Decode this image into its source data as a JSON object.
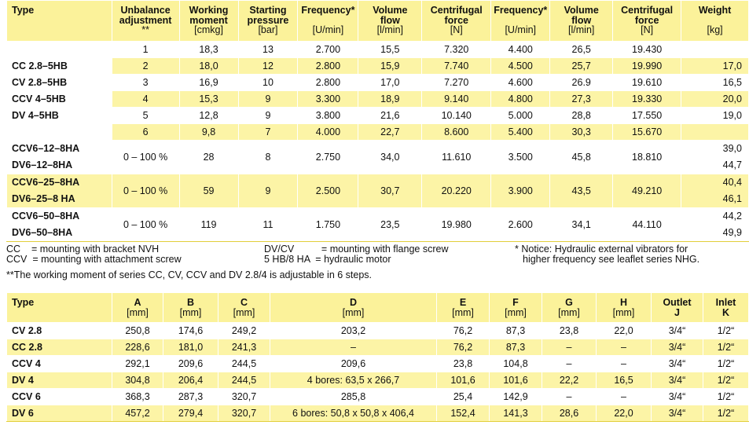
{
  "table1": {
    "headers": {
      "type": "Type",
      "unbalance": [
        "Unbalance",
        "adjustment",
        "**"
      ],
      "working": [
        "Working",
        "moment",
        "[cmkg]"
      ],
      "starting": [
        "Starting",
        "pressure",
        "[bar]"
      ],
      "freq1": [
        "Frequency*",
        "",
        "[U/min]"
      ],
      "vol1": [
        "Volume",
        "flow",
        "[l/min]"
      ],
      "cent1": [
        "Centrifugal",
        "force",
        "[N]"
      ],
      "freq2": [
        "Frequency*",
        "",
        "[U/min]"
      ],
      "vol2": [
        "Volume",
        "flow",
        "[l/min]"
      ],
      "cent2": [
        "Centrifugal",
        "force",
        "[N]"
      ],
      "weight": [
        "Weight",
        "",
        "[kg]"
      ]
    },
    "group1_types": [
      "CC 2.8–5HB",
      "CV 2.8–5HB",
      "CCV 4–5HB",
      "DV 4–5HB"
    ],
    "group1_rows": [
      [
        "1",
        "18,3",
        "13",
        "2.700",
        "15,5",
        "7.320",
        "4.400",
        "26,5",
        "19.430",
        ""
      ],
      [
        "2",
        "18,0",
        "12",
        "2.800",
        "15,9",
        "7.740",
        "4.500",
        "25,7",
        "19.990",
        "17,0"
      ],
      [
        "3",
        "16,9",
        "10",
        "2.800",
        "17,0",
        "7.270",
        "4.600",
        "26.9",
        "19.610",
        "16,5"
      ],
      [
        "4",
        "15,3",
        "9",
        "3.300",
        "18,9",
        "9.140",
        "4.800",
        "27,3",
        "19.330",
        "20,0"
      ],
      [
        "5",
        "12,8",
        "9",
        "3.800",
        "21,6",
        "10.140",
        "5.000",
        "28,8",
        "17.550",
        "19,0"
      ],
      [
        "6",
        "9,8",
        "7",
        "4.000",
        "22,7",
        "8.600",
        "5.400",
        "30,3",
        "15.670",
        ""
      ]
    ],
    "group2": [
      {
        "types": [
          "CCV6–12–8HA",
          "DV6–12–8HA"
        ],
        "values": [
          "0 – 100 %",
          "28",
          "8",
          "2.750",
          "34,0",
          "11.610",
          "3.500",
          "45,8",
          "18.810"
        ],
        "weights": [
          "39,0",
          "44,7"
        ]
      },
      {
        "types": [
          "CCV6–25–8HA",
          "DV6–25–8 HA"
        ],
        "values": [
          "0 – 100 %",
          "59",
          "9",
          "2.500",
          "30,7",
          "20.220",
          "3.900",
          "43,5",
          "49.210"
        ],
        "weights": [
          "40,4",
          "46,1"
        ]
      },
      {
        "types": [
          "CCV6–50–8HA",
          "DV6–50–8HA"
        ],
        "values": [
          "0 – 100 %",
          "119",
          "11",
          "1.750",
          "23,5",
          "19.980",
          "2.600",
          "34,1",
          "44.110"
        ],
        "weights": [
          "44,2",
          "49,9"
        ]
      }
    ]
  },
  "notes": {
    "legend_left": [
      "CC    = mounting with bracket NVH",
      "CCV  = mounting with attachment screw"
    ],
    "legend_mid": [
      "DV/CV          = mounting with flange screw",
      "5 HB/8 HA  = hydraulic motor"
    ],
    "notice": [
      "* Notice: Hydraulic external vibrators for",
      "higher frequency see leaflet series NHG."
    ],
    "footnote": "**The working moment of series CC, CV, CCV and DV 2.8/4 is adjustable in 6 steps."
  },
  "table2": {
    "headers": [
      {
        "label": "Type",
        "unit": ""
      },
      {
        "label": "A",
        "unit": "[mm]"
      },
      {
        "label": "B",
        "unit": "[mm]"
      },
      {
        "label": "C",
        "unit": "[mm]"
      },
      {
        "label": "D",
        "unit": "[mm]"
      },
      {
        "label": "E",
        "unit": "[mm]"
      },
      {
        "label": "F",
        "unit": "[mm]"
      },
      {
        "label": "G",
        "unit": "[mm]"
      },
      {
        "label": "H",
        "unit": "[mm]"
      },
      {
        "label": "Outlet",
        "unit": "J"
      },
      {
        "label": "Inlet",
        "unit": "K"
      }
    ],
    "rows": [
      [
        "CV 2.8",
        "250,8",
        "174,6",
        "249,2",
        "203,2",
        "76,2",
        "87,3",
        "23,8",
        "22,0",
        "3/4“",
        "1/2“"
      ],
      [
        "CC 2.8",
        "228,6",
        "181,0",
        "241,3",
        "–",
        "76,2",
        "87,3",
        "–",
        "–",
        "3/4“",
        "1/2“"
      ],
      [
        "CCV 4",
        "292,1",
        "209,6",
        "244,5",
        "209,6",
        "23,8",
        "104,8",
        "–",
        "–",
        "3/4“",
        "1/2“"
      ],
      [
        "DV 4",
        "304,8",
        "206,4",
        "244,5",
        "4 bores: 63,5 x 266,7",
        "101,6",
        "101,6",
        "22,2",
        "16,5",
        "3/4“",
        "1/2“"
      ],
      [
        "CCV 6",
        "368,3",
        "287,3",
        "320,7",
        "285,8",
        "25,4",
        "142,9",
        "–",
        "–",
        "3/4“",
        "1/2“"
      ],
      [
        "DV 6",
        "457,2",
        "279,4",
        "320,7",
        "6 bores: 50,8 x 50,8 x 406,4",
        "152,4",
        "141,3",
        "28,6",
        "22,0",
        "3/4“",
        "1/2“"
      ]
    ]
  }
}
